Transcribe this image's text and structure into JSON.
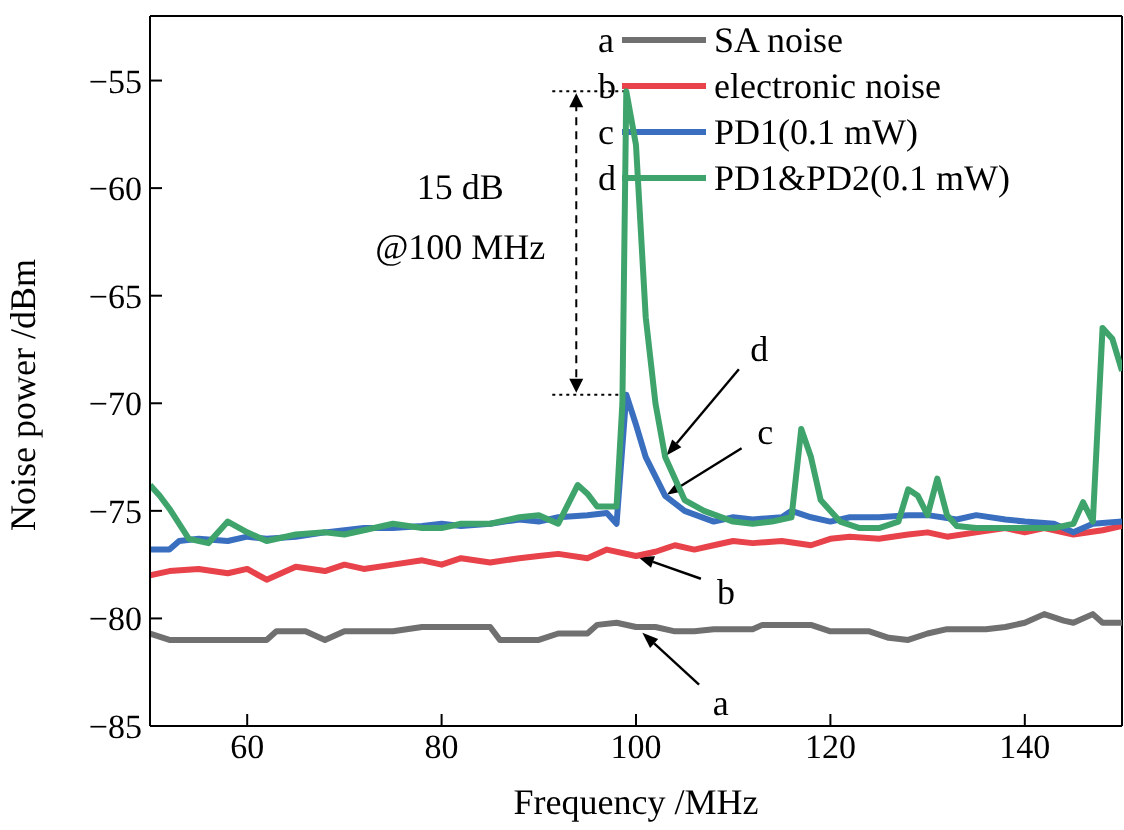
{
  "chart_data": {
    "type": "line",
    "xlabel": "Frequency /MHz",
    "ylabel": "Noise power /dBm",
    "xlim": [
      50,
      150
    ],
    "xticks": [
      60,
      80,
      100,
      120,
      140
    ],
    "ylim": [
      -85,
      -52
    ],
    "yticks": [
      {
        "value": -85,
        "label": "−85"
      },
      {
        "value": -80,
        "label": "−80"
      },
      {
        "value": -75,
        "label": "−75"
      },
      {
        "value": -70,
        "label": "−70"
      },
      {
        "value": -65,
        "label": "−65"
      },
      {
        "value": -60,
        "label": "−60"
      },
      {
        "value": -55,
        "label": "−55"
      }
    ],
    "legend": "top right",
    "marker": "none",
    "line_style": "solid",
    "annotations": [
      "15 dB\n@100 MHz",
      {
        "text": "a",
        "x": 100.5,
        "y": -80.6
      },
      {
        "text": "b",
        "x": 100,
        "y": -77.1
      },
      {
        "text": "c",
        "x": 103,
        "y": -74.3
      },
      {
        "text": "d",
        "x": 103,
        "y": -72.5
      }
    ],
    "series": [
      {
        "name": "SA noise",
        "color": "#707070",
        "x": [
          50,
          52,
          55,
          58,
          60,
          62,
          63,
          66,
          68,
          70,
          72,
          75,
          78,
          80,
          82,
          85,
          86,
          88,
          90,
          92,
          95,
          96,
          98,
          100,
          102,
          104,
          106,
          108,
          110,
          112,
          113,
          116,
          118,
          120,
          122,
          124,
          126,
          128,
          130,
          132,
          134,
          136,
          138,
          140,
          142,
          144,
          145,
          147,
          148,
          150
        ],
        "values": [
          -80.7,
          -81,
          -81,
          -81,
          -81,
          -81,
          -80.6,
          -80.6,
          -81,
          -80.6,
          -80.6,
          -80.6,
          -80.4,
          -80.4,
          -80.4,
          -80.4,
          -81,
          -81,
          -81,
          -80.7,
          -80.7,
          -80.3,
          -80.2,
          -80.4,
          -80.4,
          -80.6,
          -80.6,
          -80.5,
          -80.5,
          -80.5,
          -80.3,
          -80.3,
          -80.3,
          -80.6,
          -80.6,
          -80.6,
          -80.9,
          -81,
          -80.7,
          -80.5,
          -80.5,
          -80.5,
          -80.4,
          -80.2,
          -79.8,
          -80.1,
          -80.2,
          -79.8,
          -80.2,
          -80.2
        ]
      },
      {
        "name": "electronic noise",
        "color": "#e8424a",
        "x": [
          50,
          52,
          55,
          58,
          60,
          62,
          65,
          68,
          70,
          72,
          75,
          78,
          80,
          82,
          85,
          88,
          90,
          92,
          95,
          97,
          100,
          102,
          104,
          106,
          108,
          110,
          112,
          115,
          118,
          120,
          122,
          125,
          128,
          130,
          132,
          135,
          138,
          140,
          142,
          145,
          148,
          150
        ],
        "values": [
          -78,
          -77.8,
          -77.7,
          -77.9,
          -77.7,
          -78.2,
          -77.6,
          -77.8,
          -77.5,
          -77.7,
          -77.5,
          -77.3,
          -77.5,
          -77.2,
          -77.4,
          -77.2,
          -77.1,
          -77,
          -77.2,
          -76.8,
          -77.1,
          -76.9,
          -76.6,
          -76.8,
          -76.6,
          -76.4,
          -76.5,
          -76.4,
          -76.6,
          -76.3,
          -76.2,
          -76.3,
          -76.1,
          -76,
          -76.2,
          -76,
          -75.8,
          -76,
          -75.8,
          -76.1,
          -75.9,
          -75.7
        ]
      },
      {
        "name": "PD1(0.1 mW)",
        "color": "#3a6fc0",
        "x": [
          50,
          52,
          53,
          55,
          58,
          60,
          62,
          65,
          68,
          70,
          72,
          75,
          78,
          80,
          82,
          85,
          88,
          90,
          92,
          95,
          97,
          98,
          99,
          100,
          101,
          103,
          105,
          108,
          110,
          112,
          115,
          116,
          118,
          120,
          122,
          125,
          128,
          130,
          133,
          135,
          138,
          140,
          143,
          145,
          147,
          150
        ],
        "values": [
          -76.8,
          -76.8,
          -76.4,
          -76.3,
          -76.4,
          -76.2,
          -76.3,
          -76.2,
          -76,
          -75.9,
          -75.8,
          -75.8,
          -75.7,
          -75.6,
          -75.7,
          -75.6,
          -75.4,
          -75.5,
          -75.3,
          -75.2,
          -75.1,
          -75.6,
          -69.6,
          -71,
          -72.5,
          -74.3,
          -75,
          -75.5,
          -75.3,
          -75.4,
          -75.3,
          -75,
          -75.3,
          -75.5,
          -75.3,
          -75.3,
          -75.2,
          -75.2,
          -75.4,
          -75.2,
          -75.4,
          -75.5,
          -75.6,
          -76,
          -75.6,
          -75.5
        ]
      },
      {
        "name": "PD1&PD2(0.1 mW)",
        "color": "#3fa46b",
        "x": [
          50,
          51,
          52,
          54,
          56,
          58,
          60,
          62,
          65,
          68,
          70,
          72,
          75,
          78,
          80,
          82,
          85,
          88,
          90,
          92,
          94,
          95,
          96,
          98,
          98.6,
          99,
          100,
          101,
          102,
          103,
          105,
          107,
          110,
          112,
          114,
          116,
          117,
          118,
          119,
          121,
          123,
          125,
          127,
          128,
          129,
          130,
          131,
          132,
          133,
          135,
          138,
          140,
          143,
          145,
          146,
          147,
          148,
          149,
          150
        ],
        "values": [
          -73.8,
          -74.3,
          -74.9,
          -76.3,
          -76.5,
          -75.5,
          -76,
          -76.4,
          -76.1,
          -76,
          -76.1,
          -75.9,
          -75.6,
          -75.8,
          -75.8,
          -75.6,
          -75.6,
          -75.3,
          -75.2,
          -75.6,
          -73.8,
          -74.2,
          -74.8,
          -74.8,
          -70,
          -55.5,
          -58,
          -66,
          -70,
          -72.5,
          -74.5,
          -75,
          -75.5,
          -75.6,
          -75.5,
          -75.3,
          -71.2,
          -72.5,
          -74.5,
          -75.5,
          -75.8,
          -75.8,
          -75.5,
          -74,
          -74.3,
          -75.2,
          -73.5,
          -75.2,
          -75.7,
          -75.8,
          -75.8,
          -75.8,
          -75.8,
          -75.6,
          -74.6,
          -75.5,
          -66.5,
          -67,
          -68.5
        ]
      }
    ]
  }
}
